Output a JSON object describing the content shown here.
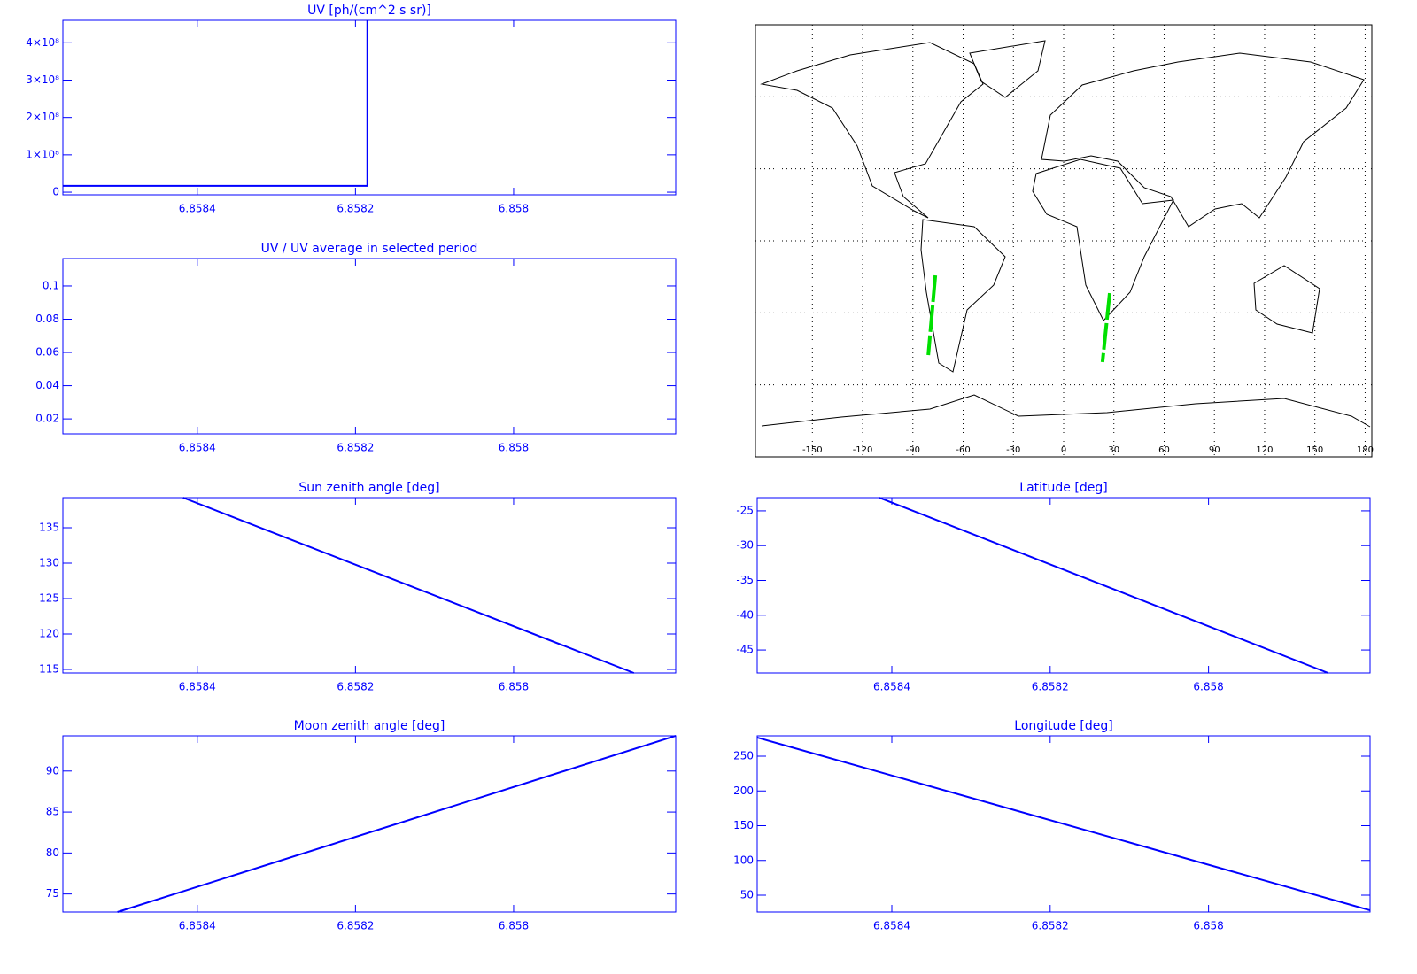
{
  "chart_data": [
    {
      "type": "line",
      "title": "UV [ph/(cm^2 s sr)]",
      "x": [
        6.85857,
        6.858185,
        6.858185
      ],
      "series": [
        {
          "color": "#0000ff",
          "values": [
            17000000,
            17000000,
            460000000
          ]
        }
      ],
      "xlim": [
        6.85857,
        6.857795
      ],
      "xticks": [
        6.8584,
        6.8582,
        6.858
      ],
      "ylim": [
        -7000000,
        460000000
      ],
      "yticks": [
        0,
        {
          "value": 100000000,
          "label": "1×10⁸"
        },
        {
          "value": 200000000,
          "label": "2×10⁸"
        },
        {
          "value": 300000000,
          "label": "3×10⁸"
        },
        {
          "value": 400000000,
          "label": "4×10⁸"
        }
      ]
    },
    {
      "type": "line",
      "title": "UV / UV average in selected period",
      "series": [],
      "xlim": [
        6.85857,
        6.857795
      ],
      "xticks": [
        6.8584,
        6.8582,
        6.858
      ],
      "ylim": [
        0.011,
        0.1165
      ],
      "yticks": [
        0.02,
        0.04,
        0.06,
        0.08,
        0.1
      ]
    },
    {
      "type": "map",
      "xlim": [
        -184,
        184
      ],
      "ylim": [
        -90,
        90
      ],
      "xticks": [
        -150,
        -120,
        -90,
        -60,
        -30,
        0,
        30,
        60,
        90,
        120,
        150,
        180
      ],
      "lat_grid": [
        -60,
        -30,
        0,
        30,
        60
      ],
      "grid": true,
      "series": [
        {
          "color": "#00e000",
          "x": [
            -76.6,
            -80.8
          ],
          "values": [
            -14.4,
            -47.6
          ]
        },
        {
          "color": "#00e000",
          "x": [
            27.5,
            23.2
          ],
          "values": [
            -21.8,
            -50.5
          ]
        }
      ]
    },
    {
      "type": "line",
      "title": "Sun zenith angle [deg]",
      "x": [
        6.858418,
        6.857848
      ],
      "series": [
        {
          "color": "#0000ff",
          "values": [
            139.25,
            114.5
          ]
        }
      ],
      "xlim": [
        6.85857,
        6.857795
      ],
      "xticks": [
        6.8584,
        6.8582,
        6.858
      ],
      "ylim": [
        114.5,
        139.25
      ],
      "yticks": [
        115,
        120,
        125,
        130,
        135
      ]
    },
    {
      "type": "line",
      "title": "Latitude [deg]",
      "x": [
        6.858416,
        6.857849
      ],
      "series": [
        {
          "color": "#0000ff",
          "values": [
            -23.1,
            -48.3
          ]
        }
      ],
      "xlim": [
        6.85857,
        6.857796
      ],
      "xticks": [
        6.8584,
        6.8582,
        6.858
      ],
      "ylim": [
        -48.3,
        -23.1
      ],
      "yticks": [
        -45,
        -40,
        -35,
        -30,
        -25
      ]
    },
    {
      "type": "line",
      "title": "Moon zenith angle [deg]",
      "x": [
        6.858501,
        6.857795
      ],
      "series": [
        {
          "color": "#0000ff",
          "values": [
            72.8,
            94.3
          ]
        }
      ],
      "xlim": [
        6.85857,
        6.857795
      ],
      "xticks": [
        6.8584,
        6.8582,
        6.858
      ],
      "ylim": [
        72.8,
        94.3
      ],
      "yticks": [
        75,
        80,
        85,
        90
      ]
    },
    {
      "type": "line",
      "title": "Longitude [deg]",
      "x": [
        6.85857,
        6.857796
      ],
      "series": [
        {
          "color": "#0000ff",
          "values": [
            276.8,
            28.3
          ]
        }
      ],
      "xlim": [
        6.85857,
        6.857796
      ],
      "xticks": [
        6.8584,
        6.8582,
        6.858
      ],
      "ylim": [
        25.8,
        279.3
      ],
      "yticks": [
        50,
        100,
        150,
        200,
        250
      ]
    }
  ]
}
